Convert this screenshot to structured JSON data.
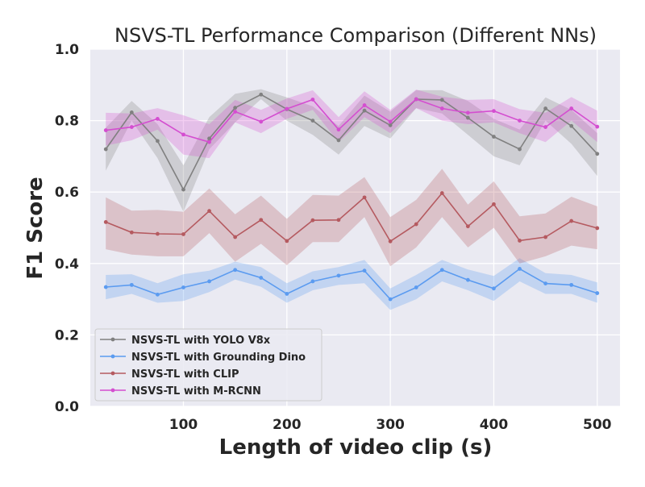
{
  "chart_data": {
    "type": "line",
    "title": "NSVS-TL Performance Comparison (Different NNs)",
    "xlabel": "Length of video clip (s)",
    "ylabel": "F1 Score",
    "xlim": [
      10,
      522
    ],
    "ylim": [
      0.0,
      1.0
    ],
    "xticks": [
      100,
      200,
      300,
      400,
      500
    ],
    "yticks": [
      0.0,
      0.2,
      0.4,
      0.6,
      0.8,
      1.0
    ],
    "xtick_labels": [
      "100",
      "200",
      "300",
      "400",
      "500"
    ],
    "ytick_labels": [
      "0.0",
      "0.2",
      "0.4",
      "0.6",
      "0.8",
      "1.0"
    ],
    "grid": true,
    "legend_position": "lower-left",
    "x": [
      25,
      50,
      75,
      100,
      125,
      150,
      175,
      200,
      225,
      250,
      275,
      300,
      325,
      350,
      375,
      400,
      425,
      450,
      475,
      500
    ],
    "series": [
      {
        "name": "NSVS-TL with YOLO V8x",
        "color": "#808080",
        "values": [
          0.72,
          0.823,
          0.743,
          0.607,
          0.75,
          0.836,
          0.873,
          0.832,
          0.8,
          0.745,
          0.828,
          0.787,
          0.86,
          0.858,
          0.808,
          0.755,
          0.72,
          0.834,
          0.785,
          0.707
        ],
        "lower": [
          0.66,
          0.8,
          0.695,
          0.545,
          0.72,
          0.795,
          0.86,
          0.8,
          0.76,
          0.705,
          0.785,
          0.75,
          0.835,
          0.82,
          0.76,
          0.7,
          0.675,
          0.8,
          0.735,
          0.645
        ],
        "upper": [
          0.78,
          0.855,
          0.79,
          0.675,
          0.81,
          0.875,
          0.888,
          0.865,
          0.84,
          0.785,
          0.87,
          0.825,
          0.885,
          0.885,
          0.855,
          0.805,
          0.775,
          0.865,
          0.83,
          0.765
        ]
      },
      {
        "name": "NSVS-TL with Grounding Dino",
        "color": "#5b9bf0",
        "values": [
          0.334,
          0.34,
          0.313,
          0.333,
          0.35,
          0.382,
          0.36,
          0.315,
          0.35,
          0.366,
          0.38,
          0.3,
          0.333,
          0.382,
          0.354,
          0.33,
          0.385,
          0.344,
          0.34,
          0.317
        ],
        "lower": [
          0.3,
          0.315,
          0.29,
          0.295,
          0.32,
          0.355,
          0.335,
          0.29,
          0.325,
          0.34,
          0.345,
          0.27,
          0.3,
          0.35,
          0.325,
          0.295,
          0.35,
          0.315,
          0.315,
          0.29
        ],
        "upper": [
          0.368,
          0.37,
          0.345,
          0.37,
          0.38,
          0.405,
          0.39,
          0.345,
          0.378,
          0.39,
          0.41,
          0.33,
          0.368,
          0.41,
          0.383,
          0.365,
          0.415,
          0.373,
          0.368,
          0.347
        ]
      },
      {
        "name": "NSVS-TL with CLIP",
        "color": "#b55a60",
        "values": [
          0.516,
          0.487,
          0.483,
          0.482,
          0.547,
          0.474,
          0.522,
          0.463,
          0.521,
          0.522,
          0.585,
          0.462,
          0.51,
          0.597,
          0.504,
          0.566,
          0.464,
          0.474,
          0.519,
          0.499
        ],
        "lower": [
          0.44,
          0.425,
          0.42,
          0.42,
          0.485,
          0.405,
          0.455,
          0.395,
          0.46,
          0.46,
          0.53,
          0.392,
          0.445,
          0.53,
          0.445,
          0.5,
          0.4,
          0.42,
          0.45,
          0.44
        ],
        "upper": [
          0.585,
          0.548,
          0.55,
          0.545,
          0.61,
          0.538,
          0.59,
          0.525,
          0.592,
          0.59,
          0.642,
          0.53,
          0.578,
          0.665,
          0.565,
          0.63,
          0.532,
          0.54,
          0.587,
          0.56
        ]
      },
      {
        "name": "NSVS-TL with M-RCNN",
        "color": "#d44ed0",
        "values": [
          0.773,
          0.782,
          0.805,
          0.761,
          0.74,
          0.825,
          0.797,
          0.833,
          0.859,
          0.775,
          0.843,
          0.797,
          0.86,
          0.834,
          0.822,
          0.827,
          0.8,
          0.782,
          0.834,
          0.783
        ],
        "lower": [
          0.73,
          0.745,
          0.775,
          0.705,
          0.695,
          0.795,
          0.765,
          0.805,
          0.83,
          0.74,
          0.81,
          0.765,
          0.835,
          0.8,
          0.79,
          0.795,
          0.765,
          0.74,
          0.8,
          0.74
        ],
        "upper": [
          0.822,
          0.82,
          0.835,
          0.815,
          0.79,
          0.858,
          0.83,
          0.862,
          0.885,
          0.81,
          0.882,
          0.83,
          0.887,
          0.867,
          0.858,
          0.86,
          0.832,
          0.822,
          0.866,
          0.828
        ]
      }
    ]
  }
}
